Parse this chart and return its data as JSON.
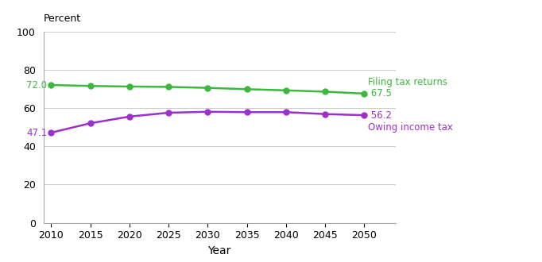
{
  "years": [
    2010,
    2015,
    2020,
    2025,
    2030,
    2035,
    2040,
    2045,
    2050
  ],
  "filing_tax_returns": [
    72.0,
    71.5,
    71.2,
    71.0,
    70.5,
    69.8,
    69.2,
    68.5,
    67.5
  ],
  "owing_income_tax": [
    47.1,
    52.0,
    55.5,
    57.5,
    58.0,
    57.8,
    57.8,
    56.8,
    56.2
  ],
  "filing_color": "#3db83d",
  "owing_color": "#9B30CC",
  "filing_label": "Filing tax returns",
  "owing_label": "Owing income tax",
  "filing_start_label": "72.0",
  "filing_end_label": "67.5",
  "owing_start_label": "47.1",
  "owing_end_label": "56.2",
  "xlabel": "Year",
  "ylabel": "Percent",
  "ylim": [
    0,
    100
  ],
  "yticks": [
    0,
    20,
    40,
    60,
    80,
    100
  ],
  "xticks": [
    2010,
    2015,
    2020,
    2025,
    2030,
    2035,
    2040,
    2045,
    2050
  ],
  "grid_color": "#cccccc",
  "background_color": "#ffffff",
  "line_width": 1.8,
  "marker": "o",
  "marker_size": 5
}
